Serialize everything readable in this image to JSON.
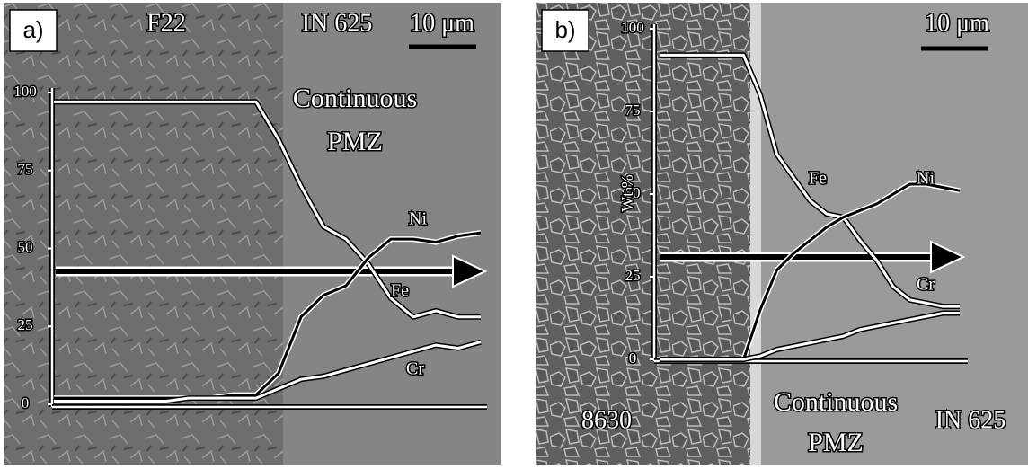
{
  "chart_data": [
    {
      "type": "line",
      "panel_label": "a)",
      "annotations": [
        "F22",
        "IN 625",
        "10 μm",
        "Continuous",
        "PMZ"
      ],
      "ylim": [
        0,
        100
      ],
      "yticks": [
        0,
        25,
        50,
        75,
        100
      ],
      "series": [
        {
          "name": "Fe",
          "color": "#ffffff",
          "values": [
            97,
            97,
            97,
            97,
            97,
            97,
            97,
            97,
            97,
            97,
            85,
            70,
            57,
            53,
            45,
            34,
            28,
            30,
            28,
            28
          ]
        },
        {
          "name": "Ni",
          "color": "#000000",
          "values": [
            2,
            2,
            2,
            2,
            2,
            2,
            2,
            2,
            3,
            3,
            10,
            28,
            35,
            38,
            47,
            53,
            53,
            52,
            54,
            55
          ]
        },
        {
          "name": "Cr",
          "color": "#ffffff",
          "values": [
            1,
            1,
            1,
            1,
            1,
            1,
            2,
            2,
            2,
            2,
            5,
            8,
            9,
            11,
            13,
            15,
            17,
            19,
            18,
            20
          ]
        }
      ]
    },
    {
      "type": "line",
      "panel_label": "b)",
      "ylabel": "Wt %",
      "annotations": [
        "10 μm",
        "8630",
        "Continuous",
        "PMZ",
        "IN 625"
      ],
      "ylim": [
        0,
        100
      ],
      "yticks": [
        0,
        25,
        50,
        75,
        100
      ],
      "series": [
        {
          "name": "Fe",
          "color": "#ffffff",
          "values": [
            92,
            92,
            92,
            92,
            92,
            92,
            80,
            62,
            55,
            48,
            44,
            43,
            36,
            30,
            22,
            18,
            17,
            16,
            16
          ]
        },
        {
          "name": "Ni",
          "color": "#000000",
          "values": [
            0,
            0,
            0,
            0,
            0,
            0,
            15,
            27,
            32,
            36,
            40,
            43,
            45,
            47,
            50,
            53,
            53,
            52,
            51
          ]
        },
        {
          "name": "Cr",
          "color": "#ffffff",
          "values": [
            0,
            0,
            0,
            0,
            0,
            0,
            1,
            3,
            4,
            5,
            6,
            7,
            9,
            10,
            11,
            12,
            13,
            14,
            14
          ]
        }
      ]
    }
  ]
}
